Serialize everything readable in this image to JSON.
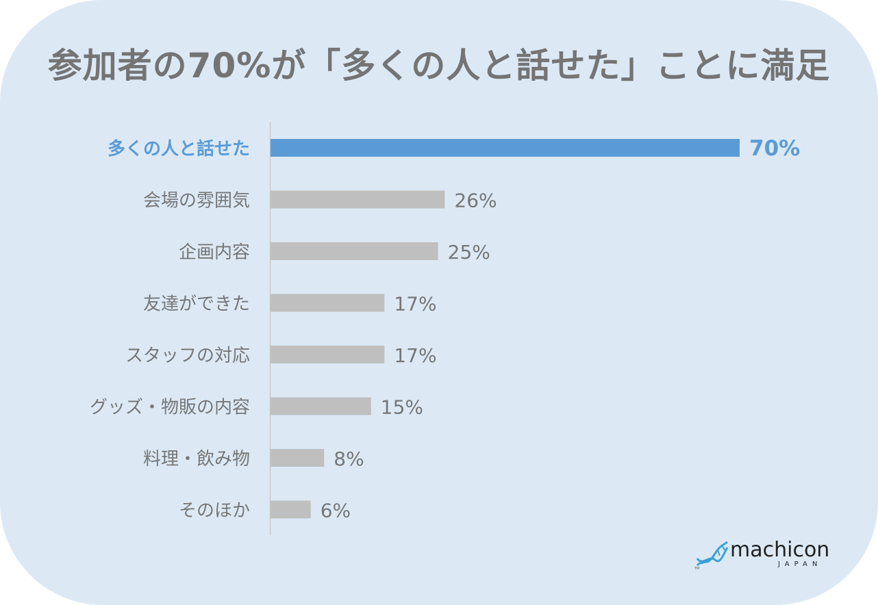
{
  "title": "参加者の70%が「多くの人と話せた」ことに満足",
  "colors": {
    "background": "#dce9f5",
    "highlight": "#5b9bd5",
    "bar": "#bfbfbf",
    "text": "#767676"
  },
  "chart_data": {
    "type": "bar",
    "orientation": "horizontal",
    "categories": [
      "多くの人と話せた",
      "会場の雰囲気",
      "企画内容",
      "友達ができた",
      "スタッフの対応",
      "グッズ・物販の内容",
      "料理・飲み物",
      "そのほか"
    ],
    "values": [
      70,
      26,
      25,
      17,
      17,
      15,
      8,
      6
    ],
    "value_labels": [
      "70%",
      "26%",
      "25%",
      "17%",
      "17%",
      "15%",
      "8%",
      "6%"
    ],
    "unit": "%",
    "highlight_index": 0,
    "xlim": [
      0,
      70
    ],
    "grid": false
  },
  "logo": {
    "name": "machicon",
    "sub": "JAPAN",
    "icon": "dna-helix-icon"
  }
}
